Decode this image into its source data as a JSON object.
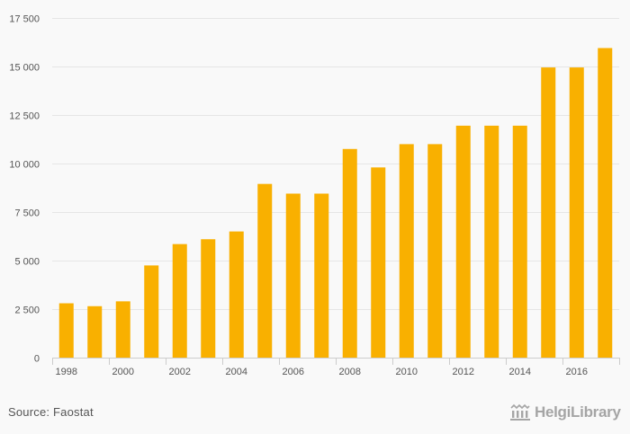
{
  "chart_data": {
    "type": "bar",
    "categories": [
      "1998",
      "1999",
      "2000",
      "2001",
      "2002",
      "2003",
      "2004",
      "2005",
      "2006",
      "2007",
      "2008",
      "2009",
      "2010",
      "2011",
      "2012",
      "2013",
      "2014",
      "2015",
      "2016",
      "2017"
    ],
    "values": [
      2800,
      2650,
      2900,
      4750,
      5850,
      6100,
      6500,
      8950,
      8450,
      8450,
      10750,
      9800,
      11000,
      11000,
      11950,
      11950,
      11950,
      14950,
      14950,
      15950
    ],
    "x_tick_labels": [
      "1998",
      "2000",
      "2002",
      "2004",
      "2006",
      "2008",
      "2010",
      "2012",
      "2014",
      "2016"
    ],
    "y_ticks": [
      0,
      2500,
      5000,
      7500,
      10000,
      12500,
      15000,
      17500
    ],
    "y_tick_labels": [
      "0",
      "2 500",
      "5 000",
      "7 500",
      "10 000",
      "12 500",
      "15 000",
      "17 500"
    ],
    "ylim": [
      0,
      17500
    ],
    "title": "",
    "xlabel": "",
    "ylabel": "",
    "grid": true,
    "bar_color": "#f9b000"
  },
  "footer": {
    "source": "Source: Faostat",
    "logo_text": "HelgiLibrary"
  }
}
